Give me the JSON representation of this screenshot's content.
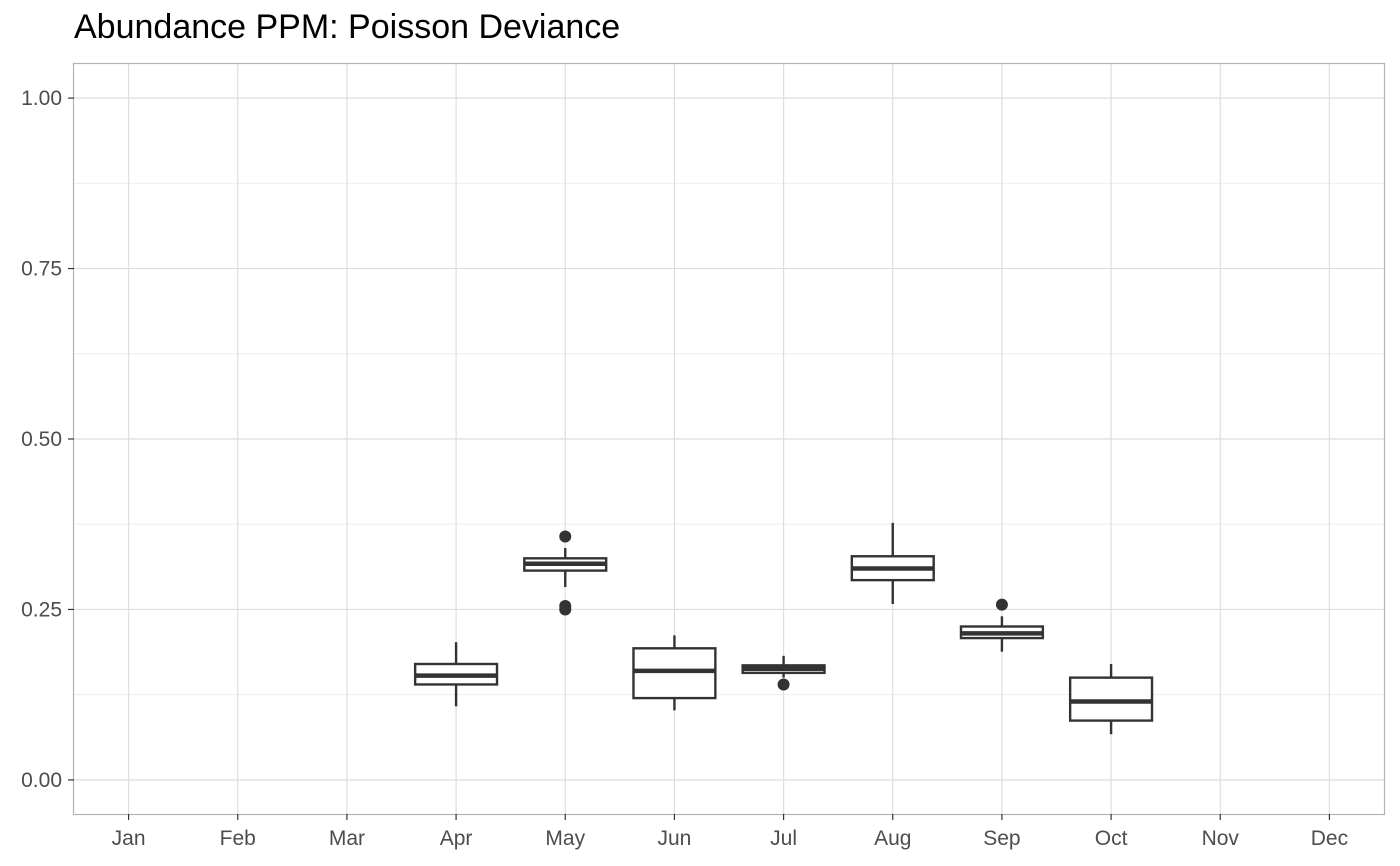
{
  "chart_data": {
    "type": "boxplot",
    "title": "Abundance PPM: Poisson Deviance",
    "xlabel": "",
    "ylabel": "",
    "categories": [
      "Jan",
      "Feb",
      "Mar",
      "Apr",
      "May",
      "Jun",
      "Jul",
      "Aug",
      "Sep",
      "Oct",
      "Nov",
      "Dec"
    ],
    "ylim": [
      -0.05,
      1.05
    ],
    "yticks": [
      0.0,
      0.25,
      0.5,
      0.75,
      1.0
    ],
    "ytick_labels": [
      "0.00",
      "0.25",
      "0.50",
      "0.75",
      "1.00"
    ],
    "grid": true,
    "boxes": [
      {
        "category": "Apr",
        "whisker_low": 0.108,
        "q1": 0.14,
        "median": 0.153,
        "q3": 0.17,
        "whisker_high": 0.202,
        "outliers": []
      },
      {
        "category": "May",
        "whisker_low": 0.283,
        "q1": 0.307,
        "median": 0.317,
        "q3": 0.325,
        "whisker_high": 0.34,
        "outliers": [
          0.357,
          0.255,
          0.25
        ]
      },
      {
        "category": "Jun",
        "whisker_low": 0.102,
        "q1": 0.12,
        "median": 0.16,
        "q3": 0.193,
        "whisker_high": 0.212,
        "outliers": []
      },
      {
        "category": "Jul",
        "whisker_low": 0.15,
        "q1": 0.157,
        "median": 0.163,
        "q3": 0.168,
        "whisker_high": 0.182,
        "outliers": [
          0.14
        ]
      },
      {
        "category": "Aug",
        "whisker_low": 0.258,
        "q1": 0.293,
        "median": 0.31,
        "q3": 0.328,
        "whisker_high": 0.377,
        "outliers": []
      },
      {
        "category": "Sep",
        "whisker_low": 0.188,
        "q1": 0.208,
        "median": 0.215,
        "q3": 0.225,
        "whisker_high": 0.24,
        "outliers": [
          0.257
        ]
      },
      {
        "category": "Oct",
        "whisker_low": 0.067,
        "q1": 0.087,
        "median": 0.115,
        "q3": 0.15,
        "whisker_high": 0.17,
        "outliers": []
      }
    ],
    "colors": {
      "box_line": "#333333",
      "box_fill": "#ffffff",
      "grid_major": "#dedede",
      "grid_minor": "#eeeeee",
      "panel_border": "#b3b3b3",
      "tick_text": "#4d4d4d"
    }
  }
}
